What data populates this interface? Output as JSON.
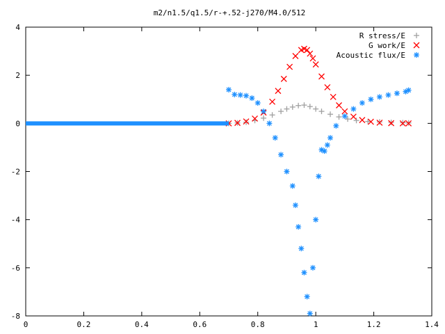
{
  "chart_data": {
    "type": "scatter",
    "title": "m2/n1.5/q1.5/r-+.52-j270/M4.0/512",
    "xlabel": "",
    "ylabel": "",
    "xlim": [
      0,
      1.4
    ],
    "ylim": [
      -8,
      4
    ],
    "grid": false,
    "legend_position": "top-right",
    "x_ticks": [
      0,
      0.2,
      0.4,
      0.6,
      0.8,
      1,
      1.2,
      1.4
    ],
    "x_tick_labels": [
      "0",
      "0.2",
      "0.4",
      "0.6",
      "0.8",
      "1",
      "1.2",
      "1.4"
    ],
    "y_ticks": [
      -8,
      -6,
      -4,
      -2,
      0,
      2,
      4
    ],
    "y_tick_labels": [
      "-8",
      "-6",
      "-4",
      "-2",
      "0",
      "2",
      "4"
    ],
    "series": [
      {
        "name": "R stress/E",
        "marker": "plus",
        "color": "#a0a0a0",
        "x": [
          0.7,
          0.73,
          0.76,
          0.79,
          0.82,
          0.85,
          0.88,
          0.9,
          0.92,
          0.94,
          0.96,
          0.98,
          1.0,
          1.02,
          1.05,
          1.08,
          1.11,
          1.14,
          1.18,
          1.22,
          1.26,
          1.3,
          1.32
        ],
        "y": [
          0.0,
          0.02,
          0.05,
          0.12,
          0.22,
          0.35,
          0.5,
          0.6,
          0.68,
          0.74,
          0.76,
          0.7,
          0.6,
          0.5,
          0.38,
          0.27,
          0.18,
          0.12,
          0.08,
          0.06,
          0.04,
          0.03,
          0.02
        ]
      },
      {
        "name": "G work/E",
        "marker": "cross",
        "color": "#ff0000",
        "x": [
          0.7,
          0.73,
          0.76,
          0.79,
          0.82,
          0.85,
          0.87,
          0.89,
          0.91,
          0.93,
          0.95,
          0.96,
          0.97,
          0.98,
          0.99,
          1.0,
          1.02,
          1.04,
          1.06,
          1.08,
          1.1,
          1.13,
          1.16,
          1.19,
          1.22,
          1.26,
          1.3,
          1.32
        ],
        "y": [
          0.0,
          0.02,
          0.08,
          0.2,
          0.45,
          0.9,
          1.35,
          1.85,
          2.35,
          2.8,
          3.05,
          3.1,
          3.05,
          2.9,
          2.7,
          2.45,
          1.95,
          1.5,
          1.1,
          0.75,
          0.5,
          0.28,
          0.14,
          0.07,
          0.03,
          0.01,
          0.0,
          0.0
        ]
      },
      {
        "name": "Acoustic flux/E",
        "marker": "star",
        "color": "#1e90ff",
        "x": [
          0.7,
          0.72,
          0.74,
          0.76,
          0.78,
          0.8,
          0.82,
          0.84,
          0.86,
          0.88,
          0.9,
          0.92,
          0.93,
          0.94,
          0.95,
          0.96,
          0.97,
          0.98,
          0.99,
          1.0,
          1.01,
          1.02,
          1.03,
          1.04,
          1.05,
          1.07,
          1.1,
          1.13,
          1.16,
          1.19,
          1.22,
          1.25,
          1.28,
          1.31,
          1.32
        ],
        "y": [
          1.4,
          1.2,
          1.18,
          1.15,
          1.05,
          0.85,
          0.5,
          0.0,
          -0.6,
          -1.3,
          -2.0,
          -2.6,
          -3.4,
          -4.3,
          -5.2,
          -6.2,
          -7.2,
          -7.9,
          -6.0,
          -4.0,
          -2.2,
          -1.1,
          -1.15,
          -0.9,
          -0.6,
          -0.1,
          0.3,
          0.6,
          0.85,
          1.0,
          1.1,
          1.18,
          1.25,
          1.32,
          1.38
        ]
      }
    ]
  }
}
